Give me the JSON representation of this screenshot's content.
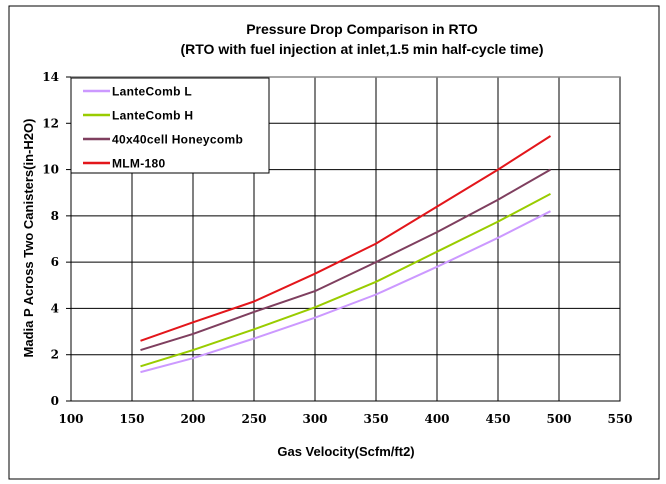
{
  "chart_data": {
    "type": "line",
    "title": "Pressure Drop Comparison in RTO",
    "subtitle": "(RTO with fuel injection at inlet,1.5 min half-cycle time)",
    "xlabel": "Gas Velocity(Scfm/ft2)",
    "ylabel": "Madia P Across Two Canisters(in-H2O)",
    "xlim": [
      100,
      550
    ],
    "ylim": [
      0,
      14
    ],
    "xticks": [
      100,
      150,
      200,
      250,
      300,
      350,
      400,
      450,
      500,
      550
    ],
    "yticks": [
      0,
      2,
      4,
      6,
      8,
      10,
      12,
      14
    ],
    "grid": true,
    "legend_position": "top-left",
    "x": [
      157,
      200,
      250,
      300,
      350,
      400,
      450,
      493
    ],
    "series": [
      {
        "name": "LanteComb L",
        "color": "#cc99ff",
        "values": [
          1.25,
          1.85,
          2.7,
          3.6,
          4.6,
          5.8,
          7.05,
          8.2
        ]
      },
      {
        "name": "LanteComb H",
        "color": "#99cc00",
        "values": [
          1.5,
          2.2,
          3.1,
          4.05,
          5.15,
          6.45,
          7.75,
          8.95
        ]
      },
      {
        "name": "40x40cell Honeycomb",
        "color": "#7f3f5f",
        "values": [
          2.2,
          2.9,
          3.85,
          4.75,
          6.0,
          7.3,
          8.7,
          10.0
        ]
      },
      {
        "name": "MLM-180",
        "color": "#e3161b",
        "values": [
          2.6,
          3.4,
          4.3,
          5.5,
          6.8,
          8.4,
          10.0,
          11.45
        ]
      }
    ]
  }
}
